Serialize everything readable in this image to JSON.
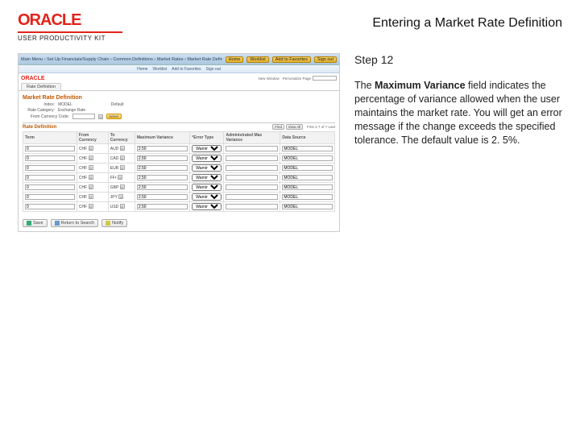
{
  "header": {
    "logo_text": "ORACLE",
    "logo_sub": "USER PRODUCTIVITY KIT",
    "page_title": "Entering a Market Rate Definition"
  },
  "right": {
    "step_label": "Step 12",
    "desc_prefix": "The ",
    "desc_bold": "Maximum Variance",
    "desc_rest": " field indicates the percentage of variance allowed when the user maintains the market rate. You will get an error message if the change exceeds the specified tolerance. The default value is 2. 5%."
  },
  "shot": {
    "breadcrumb": "Main Menu  ›  Set Up Financials/Supply Chain  ›  Common Definitions  ›  Market Rates  ›  Market Rate Definition",
    "topbar_links": [
      "Home",
      "Worklist",
      "Add to Favorites",
      "Sign out"
    ],
    "new_window": "New Window",
    "personalize": "Personalize Page",
    "tab": "Rate Definition",
    "section_title": "Market Rate Definition",
    "index_label": "Index:",
    "index_value": "MODEL",
    "default_label": "Default",
    "category_label": "Rate Category:",
    "category_value": "Exchange Rate",
    "from_cur_label": "From Currency Code:",
    "from_cur_value": "",
    "select_label": "Select",
    "rate_def_header": "Rate Definition",
    "find_label": "Find",
    "view_label": "View All",
    "range": "First  1-7 of 7  Last",
    "columns": [
      "Term",
      "From Currency",
      "To Currency",
      "Maximum Variance",
      "*Error Type",
      "Administrated Max Variance",
      "Data Source"
    ],
    "rows": [
      {
        "term": "0",
        "from": "CHF",
        "to": "AUD",
        "max": "2.50",
        "err": "Warning",
        "admin": "",
        "ds": "MODEL"
      },
      {
        "term": "0",
        "from": "CHF",
        "to": "CAD",
        "max": "2.50",
        "err": "Warning",
        "admin": "",
        "ds": "MODEL"
      },
      {
        "term": "0",
        "from": "CHF",
        "to": "EUR",
        "max": "2.50",
        "err": "Warning",
        "admin": "",
        "ds": "MODEL"
      },
      {
        "term": "0",
        "from": "CHF",
        "to": "FFr",
        "max": "2.50",
        "err": "Warning",
        "admin": "",
        "ds": "MODEL"
      },
      {
        "term": "0",
        "from": "CHF",
        "to": "GBP",
        "max": "2.50",
        "err": "Warning",
        "admin": "",
        "ds": "MODEL"
      },
      {
        "term": "0",
        "from": "CHF",
        "to": "JPY",
        "max": "2.50",
        "err": "Warning",
        "admin": "",
        "ds": "MODEL"
      },
      {
        "term": "0",
        "from": "CHF",
        "to": "USD",
        "max": "2.50",
        "err": "Warning",
        "admin": "",
        "ds": "MODEL"
      }
    ],
    "footer": {
      "save": "Save",
      "return": "Return to Search",
      "notify": "Notify"
    }
  }
}
